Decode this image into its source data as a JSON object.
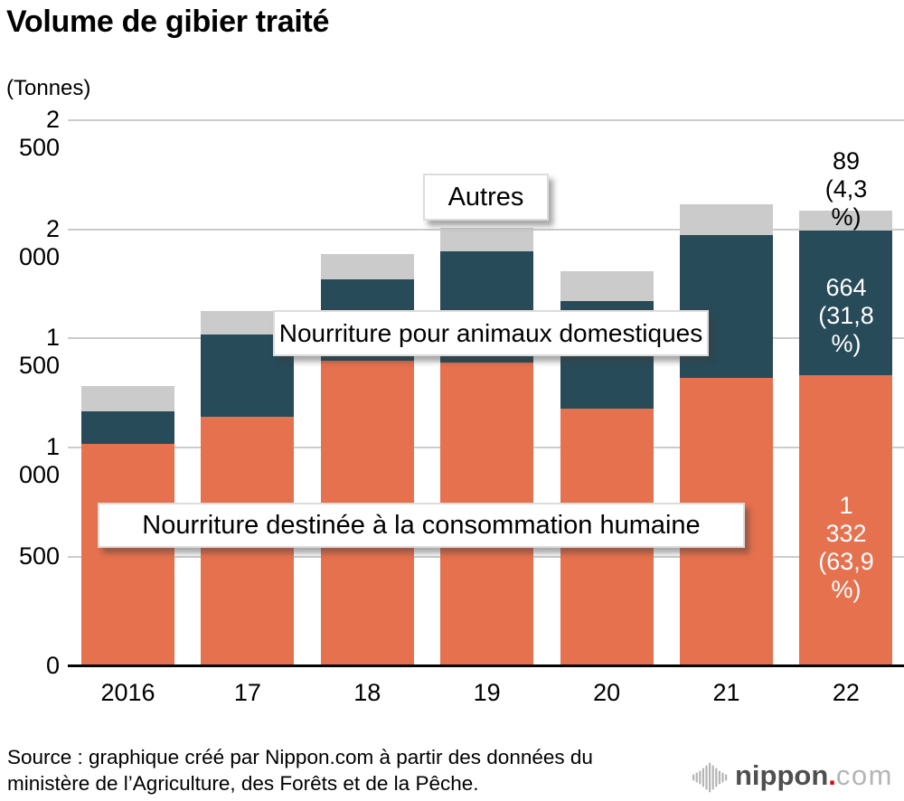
{
  "title": "Volume de gibier traité",
  "unit_label": "(Tonnes)",
  "colors": {
    "human": "#E6714E",
    "pet": "#284B59",
    "other": "#CBCBCB",
    "grid": "#CCCCCC",
    "axis": "#000000",
    "logo_text": "#4F4F4F",
    "logo_dot": "#E60012",
    "logo_tld": "#B5B5B5"
  },
  "chart_data": {
    "type": "bar",
    "stacked": true,
    "title": "Volume de gibier traité",
    "ylabel": "(Tonnes)",
    "ylim": [
      0,
      2500
    ],
    "grid": true,
    "categories": [
      "2016",
      "17",
      "18",
      "19",
      "20",
      "21",
      "22"
    ],
    "series": [
      {
        "name": "Nourriture destinée à la consommation humaine",
        "key": "human",
        "color": "#E6714E",
        "values": [
          1015,
          1140,
          1400,
          1390,
          1180,
          1320,
          1332
        ]
      },
      {
        "name": "Nourriture pour animaux domestiques",
        "key": "pet",
        "color": "#284B59",
        "values": [
          150,
          380,
          370,
          510,
          490,
          655,
          664
        ]
      },
      {
        "name": "Autres",
        "key": "other",
        "color": "#CBCBCB",
        "values": [
          118,
          105,
          115,
          105,
          140,
          140,
          89
        ]
      }
    ],
    "yticks": [
      {
        "label": "2 500",
        "value": 2500
      },
      {
        "label": "2 000",
        "value": 2000
      },
      {
        "label": "1 500",
        "value": 1500
      },
      {
        "label": "1 000",
        "value": 1000
      },
      {
        "label": "500",
        "value": 500
      },
      {
        "label": "0",
        "value": 0
      }
    ],
    "annotations": {
      "other": {
        "line1": "89",
        "line2": "(4,3 %)"
      },
      "pet": {
        "line1": "664",
        "line2": "(31,8 %)"
      },
      "human": {
        "line1": "1 332",
        "line2": "(63,9 %)"
      }
    }
  },
  "labels": {
    "autres": "Autres",
    "pet": "Nourriture pour animaux domestiques",
    "human": "Nourriture destinée à la consommation humaine"
  },
  "source": {
    "line1": "Source : graphique créé par Nippon.com à partir des données du",
    "line2": "ministère de l’Agriculture, des Forêts et de la Pêche."
  },
  "logo": {
    "name": "nippon",
    "dot": ".",
    "tld": "com"
  }
}
